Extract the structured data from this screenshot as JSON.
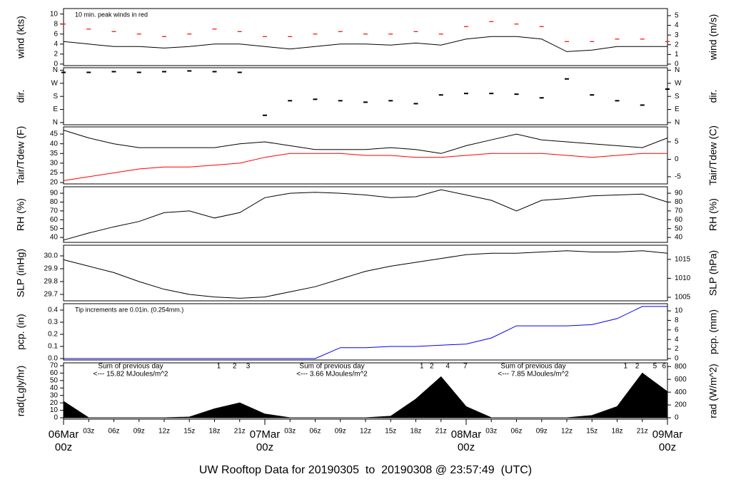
{
  "footer_title": "UW Rooftop Data for 20190305  to  20190308 @ 23:57:49  (UTC)",
  "footer_color": "#0000ff",
  "time_axis": {
    "xlim": [
      0,
      72
    ],
    "xticks": [
      {
        "value": 3,
        "label": "03z"
      },
      {
        "value": 6,
        "label": "06z"
      },
      {
        "value": 9,
        "label": "09z"
      },
      {
        "value": 12,
        "label": "12z"
      },
      {
        "value": 15,
        "label": "15z"
      },
      {
        "value": 18,
        "label": "18z"
      },
      {
        "value": 21,
        "label": "21z"
      },
      {
        "value": 27,
        "label": "03z"
      },
      {
        "value": 30,
        "label": "06z"
      },
      {
        "value": 33,
        "label": "09z"
      },
      {
        "value": 36,
        "label": "12z"
      },
      {
        "value": 39,
        "label": "15z"
      },
      {
        "value": 42,
        "label": "18z"
      },
      {
        "value": 45,
        "label": "21z"
      },
      {
        "value": 51,
        "label": "03z"
      },
      {
        "value": 54,
        "label": "06z"
      },
      {
        "value": 57,
        "label": "09z"
      },
      {
        "value": 60,
        "label": "12z"
      },
      {
        "value": 63,
        "label": "15z"
      },
      {
        "value": 66,
        "label": "18z"
      },
      {
        "value": 69,
        "label": "21z"
      }
    ],
    "major_ticks": [
      {
        "value": 0,
        "label": [
          "06Mar",
          "00z"
        ]
      },
      {
        "value": 24,
        "label": [
          "07Mar",
          "00z"
        ]
      },
      {
        "value": 48,
        "label": [
          "08Mar",
          "00z"
        ]
      },
      {
        "value": 72,
        "label": [
          "09Mar",
          "00z"
        ]
      }
    ],
    "major_color": "#ff0000"
  },
  "chart_data": [
    {
      "type": "line",
      "ylabel": "wind (kts)",
      "y2label": "wind (m/s)",
      "ylim": [
        -0.3,
        11.1
      ],
      "yticks": [
        0,
        2,
        4,
        6,
        8,
        10
      ],
      "y2lim": [
        -0.15,
        5.73
      ],
      "y2ticks": [
        0,
        1,
        2,
        3,
        4,
        5
      ],
      "annotation": {
        "text": "10 min. peak winds in red",
        "color": "#ff0000"
      },
      "x": [
        0,
        3,
        6,
        9,
        12,
        15,
        18,
        21,
        24,
        27,
        30,
        33,
        36,
        39,
        42,
        45,
        48,
        51,
        54,
        57,
        60,
        63,
        66,
        69,
        72
      ],
      "series": [
        {
          "color": "#000000",
          "values": [
            4.5,
            4,
            3.5,
            3.5,
            3.2,
            3.5,
            4,
            4,
            3.5,
            3,
            3.5,
            4,
            4,
            3.8,
            4.2,
            3.8,
            5,
            5.5,
            5.5,
            5,
            2.5,
            2.8,
            3.5,
            3.5,
            3.5
          ]
        },
        {
          "color": "#ff0000",
          "style": "dash",
          "values": [
            8,
            7,
            6.5,
            6,
            5.5,
            6,
            7,
            6.5,
            5.5,
            5.5,
            6,
            6.5,
            6,
            6,
            6.5,
            6,
            7.5,
            8.5,
            8,
            7.5,
            4.5,
            4.5,
            5,
            5,
            4.5
          ]
        }
      ]
    },
    {
      "type": "scatter",
      "ylabel": "dir.",
      "y2label": "dir.",
      "ylim": [
        -15,
        377
      ],
      "yticks": [
        {
          "value": 0,
          "label": "N"
        },
        {
          "value": 90,
          "label": "E"
        },
        {
          "value": 180,
          "label": "S"
        },
        {
          "value": 270,
          "label": "W"
        },
        {
          "value": 360,
          "label": "N"
        }
      ],
      "y2lim": [
        -15,
        377
      ],
      "y2ticks": [
        {
          "value": 0,
          "label": "N"
        },
        {
          "value": 90,
          "label": "E"
        },
        {
          "value": 180,
          "label": "S"
        },
        {
          "value": 270,
          "label": "W"
        },
        {
          "value": 360,
          "label": "N"
        }
      ],
      "x": [
        0,
        3,
        6,
        9,
        12,
        15,
        18,
        21,
        24,
        27,
        30,
        33,
        36,
        39,
        42,
        45,
        48,
        51,
        54,
        57,
        60,
        63,
        66,
        69,
        72
      ],
      "series": [
        {
          "color": "#000000",
          "values": [
            345,
            345,
            350,
            345,
            350,
            355,
            350,
            345,
            50,
            150,
            160,
            150,
            140,
            150,
            130,
            190,
            200,
            200,
            195,
            170,
            300,
            190,
            150,
            120,
            230
          ]
        }
      ]
    },
    {
      "type": "line",
      "ylabel": "Tair/Tdew (F)",
      "y2label": "Tair/Tdew (C)",
      "ylim": [
        19.3,
        48.7
      ],
      "yticks": [
        20,
        25,
        30,
        35,
        40,
        45
      ],
      "y2lim": [
        -7.06,
        9.28
      ],
      "y2ticks": [
        -5,
        0,
        5
      ],
      "x": [
        0,
        3,
        6,
        9,
        12,
        15,
        18,
        21,
        24,
        27,
        30,
        33,
        36,
        39,
        42,
        45,
        48,
        51,
        54,
        57,
        60,
        63,
        66,
        69,
        72
      ],
      "series": [
        {
          "color": "#000000",
          "values": [
            47,
            43,
            40,
            38,
            38,
            38,
            38,
            40,
            41,
            39,
            37,
            37,
            37,
            38,
            37,
            35,
            39,
            42,
            45,
            42,
            41,
            40,
            39,
            38,
            43
          ]
        },
        {
          "color": "#ff0000",
          "values": [
            21,
            23,
            25,
            27,
            28,
            28,
            29,
            30,
            33,
            35,
            35,
            35,
            34,
            34,
            33,
            33,
            34,
            35,
            35,
            35,
            34,
            33,
            34,
            35,
            35
          ]
        }
      ]
    },
    {
      "type": "line",
      "ylabel": "RH (%)",
      "y2label": "RH (%)",
      "ylim": [
        34.4,
        97.3
      ],
      "yticks": [
        40,
        50,
        60,
        70,
        80,
        90
      ],
      "y2lim": [
        34.4,
        97.3
      ],
      "y2ticks": [
        40,
        50,
        60,
        70,
        80,
        90
      ],
      "x": [
        0,
        3,
        6,
        9,
        12,
        15,
        18,
        21,
        24,
        27,
        30,
        33,
        36,
        39,
        42,
        45,
        48,
        51,
        54,
        57,
        60,
        63,
        66,
        69,
        72
      ],
      "series": [
        {
          "color": "#000000",
          "values": [
            37,
            45,
            52,
            58,
            68,
            70,
            62,
            68,
            85,
            90,
            91,
            90,
            88,
            85,
            86,
            94,
            88,
            82,
            70,
            82,
            84,
            87,
            88,
            89,
            80
          ]
        }
      ]
    },
    {
      "type": "line",
      "ylabel": "SLP (inHg)",
      "y2label": "SLP (hPa)",
      "ylim": [
        29.65,
        30.083
      ],
      "yticks": [
        29.7,
        29.8,
        29.9,
        {
          "value": 30,
          "label": "30.0"
        }
      ],
      "y2lim": [
        1004.06,
        1018.73
      ],
      "y2ticks": [
        1005,
        1010,
        1015
      ],
      "x": [
        0,
        3,
        6,
        9,
        12,
        15,
        18,
        21,
        24,
        27,
        30,
        33,
        36,
        39,
        42,
        45,
        48,
        51,
        54,
        57,
        60,
        63,
        66,
        69,
        72
      ],
      "series": [
        {
          "color": "#000000",
          "values": [
            29.97,
            29.92,
            29.87,
            29.8,
            29.74,
            29.7,
            29.68,
            29.67,
            29.68,
            29.72,
            29.76,
            29.82,
            29.88,
            29.92,
            29.95,
            29.98,
            30.01,
            30.02,
            30.02,
            30.03,
            30.04,
            30.03,
            30.03,
            30.04,
            30.02
          ]
        }
      ]
    },
    {
      "type": "line",
      "ylabel": "pcp. (in)",
      "y2label": "pcp. (mm)",
      "ylim": [
        -0.012,
        0.453
      ],
      "yticks": [
        {
          "value": 0,
          "label": "0.0"
        },
        0.1,
        0.2,
        0.3,
        0.4
      ],
      "y2lim": [
        -0.3,
        11.5
      ],
      "y2ticks": [
        0,
        2,
        4,
        6,
        8,
        10
      ],
      "annotation": {
        "text": "Tip increments are 0.01in. (0.254mm.)",
        "color": "#0000ff"
      },
      "x": [
        0,
        3,
        6,
        9,
        12,
        15,
        18,
        21,
        24,
        27,
        30,
        33,
        36,
        39,
        42,
        45,
        48,
        51,
        54,
        57,
        60,
        63,
        66,
        69,
        72
      ],
      "series": [
        {
          "color": "#0000ff",
          "values": [
            0,
            0,
            0,
            0,
            0,
            0,
            0,
            0,
            0,
            0,
            0,
            0.09,
            0.09,
            0.1,
            0.1,
            0.11,
            0.12,
            0.17,
            0.27,
            0.27,
            0.27,
            0.28,
            0.33,
            0.43,
            0.43
          ]
        }
      ]
    },
    {
      "type": "area",
      "ylabel": "rad(Lgly/hr)",
      "y2label": "rad (W/m^2)",
      "ylim": [
        -1.9,
        73.8
      ],
      "yticks": [
        0,
        10,
        20,
        30,
        40,
        50,
        60,
        70
      ],
      "y2lim": [
        -22,
        858
      ],
      "y2ticks": [
        0,
        200,
        400,
        600,
        800
      ],
      "label_color": "#9933cc",
      "daily_sums": [
        {
          "x": 8,
          "lines": [
            "Sum of previous day",
            "<--- 15.82 MJoules/m^2"
          ]
        },
        {
          "x": 32,
          "lines": [
            "Sum of previous day",
            "<--- 3.66 MJoules/m^2"
          ]
        },
        {
          "x": 56,
          "lines": [
            "Sum of previous day",
            "<--- 7.85 MJoules/m^2"
          ]
        }
      ],
      "hour_markers": [
        {
          "x": 18.5,
          "label": "1"
        },
        {
          "x": 20.4,
          "label": "2"
        },
        {
          "x": 22,
          "label": "3"
        },
        {
          "x": 42.7,
          "label": "1"
        },
        {
          "x": 43.9,
          "label": "2"
        },
        {
          "x": 45.8,
          "label": "4"
        },
        {
          "x": 47.9,
          "label": "7"
        },
        {
          "x": 67,
          "label": "1"
        },
        {
          "x": 68.4,
          "label": "2"
        },
        {
          "x": 70.5,
          "label": "5"
        },
        {
          "x": 71.6,
          "label": "6"
        }
      ],
      "x": [
        0,
        3,
        6,
        9,
        12,
        15,
        18,
        21,
        24,
        27,
        30,
        33,
        36,
        39,
        42,
        45,
        48,
        51,
        54,
        57,
        60,
        63,
        66,
        69,
        72
      ],
      "series": [
        {
          "color": "#000000",
          "values": [
            22,
            0,
            0,
            0,
            0,
            1,
            12,
            20,
            5,
            0,
            0,
            0,
            0,
            2,
            25,
            55,
            15,
            0,
            0,
            0,
            0,
            3,
            15,
            60,
            35
          ]
        }
      ]
    }
  ]
}
